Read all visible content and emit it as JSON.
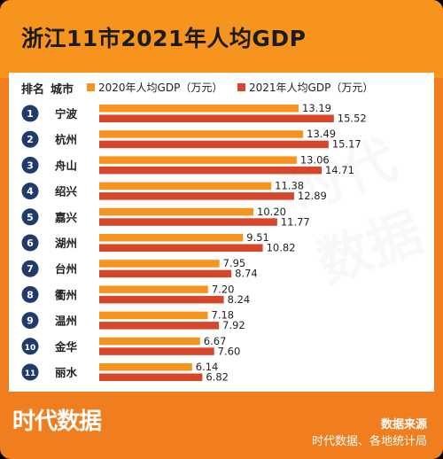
{
  "title": "浙江11市2021年人均GDP",
  "columns": {
    "rank": "排名",
    "city": "城市"
  },
  "legend": [
    {
      "label": "2020年人均GDP（万元）",
      "color": "#f7941e"
    },
    {
      "label": "2021年人均GDP（万元）",
      "color": "#d5462a"
    }
  ],
  "chart_data": {
    "type": "bar",
    "orientation": "horizontal",
    "categories": [
      "宁波",
      "杭州",
      "舟山",
      "绍兴",
      "嘉兴",
      "湖州",
      "台州",
      "衢州",
      "温州",
      "金华",
      "丽水"
    ],
    "ranks": [
      "1",
      "2",
      "3",
      "4",
      "5",
      "6",
      "7",
      "8",
      "9",
      "10",
      "11"
    ],
    "series": [
      {
        "name": "2020年人均GDP（万元）",
        "color": "#f7941e",
        "values": [
          13.19,
          13.49,
          13.06,
          11.38,
          10.2,
          9.51,
          7.95,
          7.2,
          7.18,
          6.67,
          6.14
        ]
      },
      {
        "name": "2021年人均GDP（万元）",
        "color": "#d5462a",
        "values": [
          15.52,
          15.17,
          14.71,
          12.89,
          11.77,
          10.82,
          8.74,
          8.24,
          7.92,
          7.6,
          6.82
        ]
      }
    ],
    "xlim": [
      0,
      16
    ],
    "grid": false,
    "legend_position": "top"
  },
  "brand": "时代数据",
  "watermark": "时代数据",
  "source": {
    "title": "数据来源",
    "text": "时代数据、各地统计局"
  }
}
